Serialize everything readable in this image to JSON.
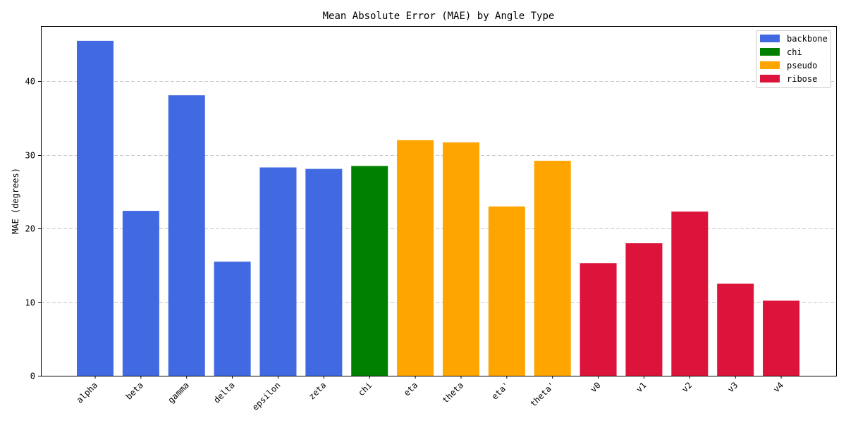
{
  "chart_data": {
    "type": "bar",
    "title": "Mean Absolute Error (MAE) by Angle Type",
    "xlabel": "",
    "ylabel": "MAE (degrees)",
    "ylim": [
      0,
      47.5
    ],
    "yticks": [
      0,
      10,
      20,
      30,
      40
    ],
    "grid": "y-dashed",
    "legend_position": "top-right",
    "categories": [
      "alpha",
      "beta",
      "gamma",
      "delta",
      "epsilon",
      "zeta",
      "chi",
      "eta",
      "theta",
      "eta'",
      "theta'",
      "v0",
      "v1",
      "v2",
      "v3",
      "v4"
    ],
    "values": [
      45.5,
      22.4,
      38.1,
      15.5,
      28.3,
      28.1,
      28.5,
      32.0,
      31.7,
      23.0,
      29.2,
      15.3,
      18.0,
      22.3,
      12.5,
      10.2
    ],
    "groups": [
      "backbone",
      "backbone",
      "backbone",
      "backbone",
      "backbone",
      "backbone",
      "chi",
      "pseudo",
      "pseudo",
      "pseudo",
      "pseudo",
      "ribose",
      "ribose",
      "ribose",
      "ribose",
      "ribose"
    ],
    "legend": [
      {
        "name": "backbone",
        "color": "#4169E1"
      },
      {
        "name": "chi",
        "color": "#008000"
      },
      {
        "name": "pseudo",
        "color": "#FFA500"
      },
      {
        "name": "ribose",
        "color": "#DC143C"
      }
    ]
  }
}
